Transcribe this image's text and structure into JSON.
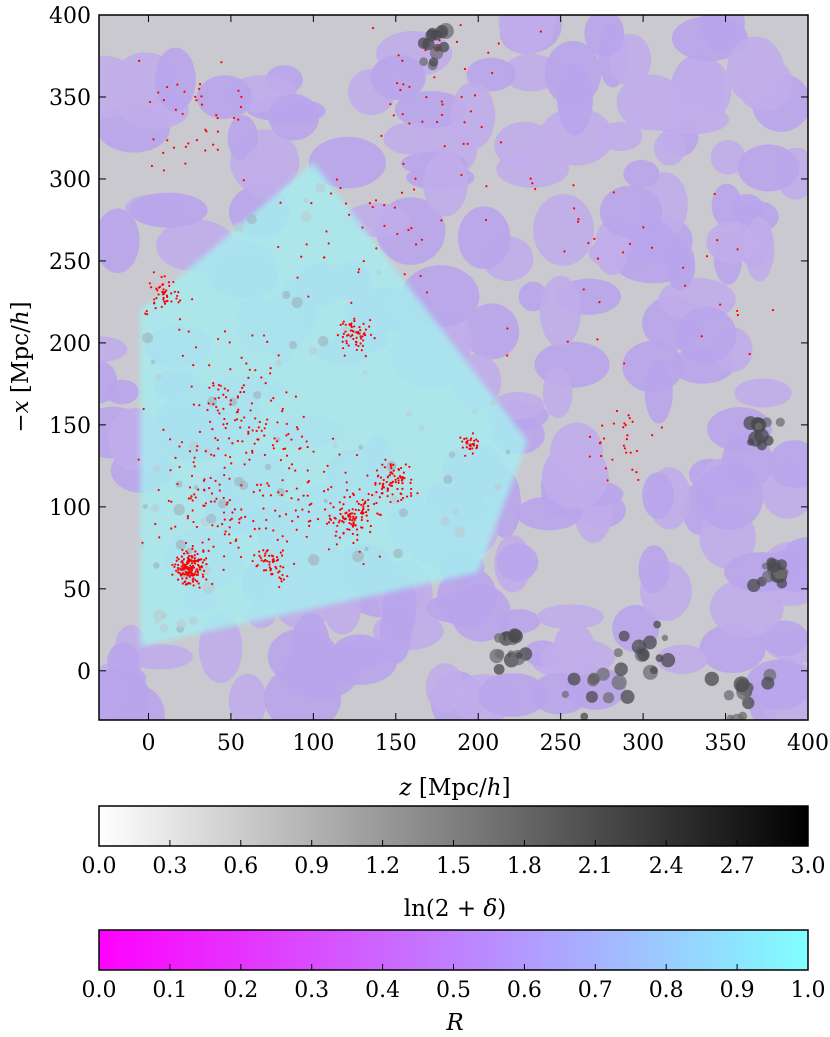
{
  "chart_data": [
    {
      "type": "heatmap",
      "xlabel": "z [Mpc/h]",
      "ylabel": "−x [Mpc/h]",
      "xlim": [
        -30,
        400
      ],
      "ylim": [
        -30,
        400
      ],
      "x_ticks": [
        "0",
        "50",
        "100",
        "150",
        "200",
        "250",
        "300",
        "350",
        "400"
      ],
      "y_ticks": [
        "0",
        "50",
        "100",
        "150",
        "200",
        "250",
        "300",
        "350",
        "400"
      ],
      "grid": false,
      "overlays": [
        {
          "name": "density field ln(2+δ)",
          "colormap": "gray",
          "range": [
            0.0,
            3.0
          ]
        },
        {
          "name": "R",
          "colormap": "magenta-cyan",
          "range": [
            0.0,
            1.0
          ]
        },
        {
          "name": "galaxies",
          "kind": "scatter",
          "color": "#ff0000"
        }
      ],
      "survey_footprint": {
        "description": "wedge-shaped region of high R",
        "corners": [
          [
            -5,
            15
          ],
          [
            -5,
            220
          ],
          [
            100,
            310
          ],
          [
            230,
            140
          ],
          [
            200,
            60
          ]
        ]
      },
      "galaxy_clusters": [
        {
          "z": 25,
          "x": 62,
          "n": 160,
          "spread": 10
        },
        {
          "z": 125,
          "x": 95,
          "n": 90,
          "spread": 12
        },
        {
          "z": 150,
          "x": 115,
          "n": 80,
          "spread": 12
        },
        {
          "z": 125,
          "x": 205,
          "n": 60,
          "spread": 10
        },
        {
          "z": 10,
          "x": 230,
          "n": 50,
          "spread": 12
        },
        {
          "z": 75,
          "x": 65,
          "n": 50,
          "spread": 10
        },
        {
          "z": 195,
          "x": 138,
          "n": 30,
          "spread": 6
        },
        {
          "z": 290,
          "x": 140,
          "n": 30,
          "spread": 20
        },
        {
          "z": 60,
          "x": 150,
          "n": 60,
          "spread": 30
        },
        {
          "z": 100,
          "x": 100,
          "n": 80,
          "spread": 40
        },
        {
          "z": 40,
          "x": 100,
          "n": 110,
          "spread": 35
        },
        {
          "z": 50,
          "x": 170,
          "n": 70,
          "spread": 40
        },
        {
          "z": 130,
          "x": 270,
          "n": 40,
          "spread": 45
        },
        {
          "z": 180,
          "x": 350,
          "n": 40,
          "spread": 50
        },
        {
          "z": 30,
          "x": 340,
          "n": 40,
          "spread": 40
        },
        {
          "z": 250,
          "x": 260,
          "n": 25,
          "spread": 60
        },
        {
          "z": 340,
          "x": 250,
          "n": 15,
          "spread": 50
        }
      ],
      "dark_filaments": [
        {
          "z": 270,
          "x": -5,
          "r": 30
        },
        {
          "z": 300,
          "x": 10,
          "r": 25
        },
        {
          "z": 360,
          "x": -10,
          "r": 25
        },
        {
          "z": 380,
          "x": 60,
          "r": 20
        },
        {
          "z": 220,
          "x": 10,
          "r": 18
        },
        {
          "z": 175,
          "x": 380,
          "r": 15
        },
        {
          "z": 370,
          "x": 150,
          "r": 18
        }
      ]
    },
    {
      "type": "colorbar",
      "orientation": "horizontal",
      "label": "ln(2 + δ)",
      "range": [
        0.0,
        3.0
      ],
      "ticks": [
        "0.0",
        "0.3",
        "0.6",
        "0.9",
        "1.2",
        "1.5",
        "1.8",
        "2.1",
        "2.4",
        "2.7",
        "3.0"
      ],
      "colors": [
        "#ffffff",
        "#000000"
      ]
    },
    {
      "type": "colorbar",
      "orientation": "horizontal",
      "label": "R",
      "range": [
        0.0,
        1.0
      ],
      "ticks": [
        "0.0",
        "0.1",
        "0.2",
        "0.3",
        "0.4",
        "0.5",
        "0.6",
        "0.7",
        "0.8",
        "0.9",
        "1.0"
      ],
      "colors": [
        "#ff00ff",
        "#80ffff"
      ]
    }
  ]
}
